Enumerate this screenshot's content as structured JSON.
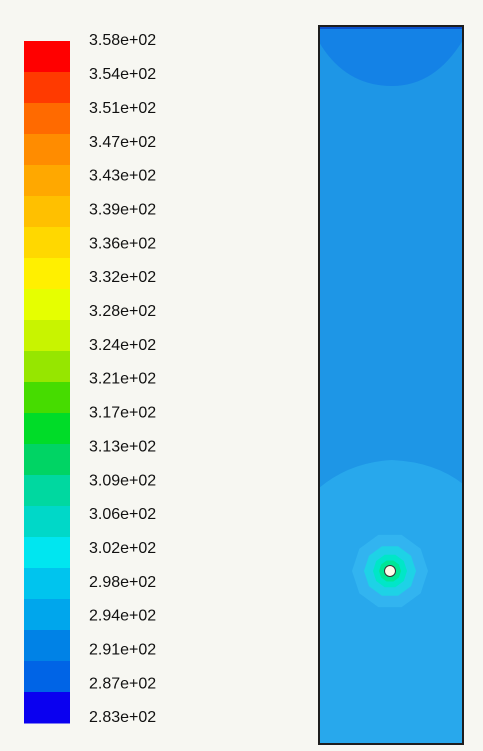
{
  "chart_data": {
    "type": "heatmap",
    "title": "",
    "colorbar": {
      "min": 283,
      "max": 358,
      "labels": [
        "3.58e+02",
        "3.54e+02",
        "3.51e+02",
        "3.47e+02",
        "3.43e+02",
        "3.39e+02",
        "3.36e+02",
        "3.32e+02",
        "3.28e+02",
        "3.24e+02",
        "3.21e+02",
        "3.17e+02",
        "3.13e+02",
        "3.09e+02",
        "3.06e+02",
        "3.02e+02",
        "2.98e+02",
        "2.94e+02",
        "2.91e+02",
        "2.87e+02",
        "2.83e+02"
      ],
      "colors_top_to_bottom": [
        "#ff0000",
        "#ff3a00",
        "#ff6a00",
        "#ff8c00",
        "#ffa800",
        "#ffc000",
        "#ffd800",
        "#fff000",
        "#e6ff00",
        "#c8f400",
        "#96e600",
        "#46dc00",
        "#00dc28",
        "#00d464",
        "#00d8a0",
        "#00d8c8",
        "#00e6f0",
        "#00c4ee",
        "#00a6ec",
        "#0082e6",
        "#0064e6",
        "#0a00f0"
      ]
    },
    "domain": {
      "background_color": "#1e96e6",
      "top_region_color": "#1482e6",
      "top_edge_color": "#0a50cc",
      "lower_region_color": "#28a8ec",
      "hotspot_colors": [
        "#32b4f0",
        "#1ed2e6",
        "#00e6c8",
        "#00e696"
      ],
      "hole_color": "#fffcea",
      "outline_color": "#1e1e1e"
    }
  }
}
